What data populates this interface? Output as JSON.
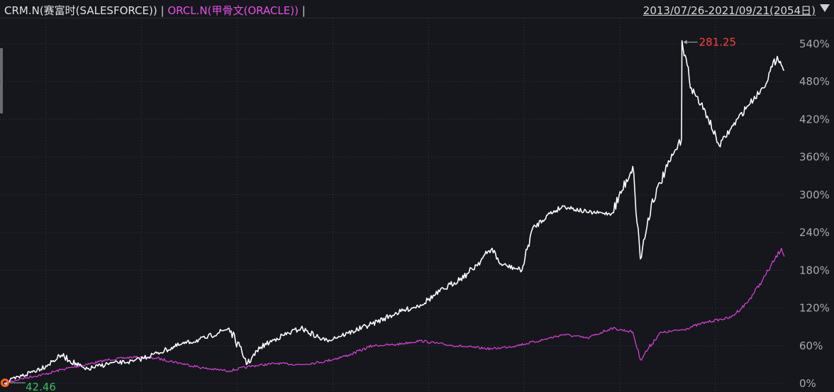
{
  "header": {
    "series_crm_label": "CRM.N(赛富时(SALESFORCE))",
    "separator": " | ",
    "series_orcl_label": "ORCL.N(甲骨文(ORACLE))",
    "separator_end": " |",
    "date_range": "2013/07/26-2021/09/21(2054日)"
  },
  "colors": {
    "background": "#16171c",
    "crm_line": "#ffffff",
    "orcl_line": "#e040e0",
    "grid": "#3a3b42",
    "axis_text": "#a8a8ae",
    "high_label": "#ff4040",
    "low_label": "#33c05a",
    "low_marker": "#ff6a1a"
  },
  "icons": {
    "range_dropdown": "triangle-down-icon",
    "low_marker": "circle-marker-icon"
  },
  "chart_data": {
    "type": "line",
    "x_range": [
      "2013/07/26",
      "2021/09/21"
    ],
    "trading_days": 2054,
    "y_unit": "%",
    "ylim": [
      0,
      560
    ],
    "y_ticks": [
      0,
      60,
      120,
      180,
      240,
      300,
      360,
      420,
      480,
      540
    ],
    "y_tick_labels": [
      "0%",
      "60%",
      "120%",
      "180%",
      "240%",
      "300%",
      "360%",
      "420%",
      "480%",
      "540%"
    ],
    "annotations": {
      "high_value": "281.25",
      "low_value": "42.46"
    },
    "series": [
      {
        "name": "CRM.N(赛富时(SALESFORCE))",
        "x": [
          "2013-07-26",
          "2013-10-01",
          "2014-01-01",
          "2014-03-01",
          "2014-06-01",
          "2014-09-01",
          "2014-12-01",
          "2015-03-01",
          "2015-06-01",
          "2015-09-01",
          "2015-12-01",
          "2016-02-10",
          "2016-04-01",
          "2016-06-01",
          "2016-09-01",
          "2016-12-01",
          "2017-03-01",
          "2017-06-01",
          "2017-09-01",
          "2017-12-01",
          "2018-03-01",
          "2018-06-01",
          "2018-09-01",
          "2018-10-01",
          "2018-12-24",
          "2019-02-01",
          "2019-04-01",
          "2019-06-01",
          "2019-09-01",
          "2019-12-01",
          "2020-02-20",
          "2020-03-20",
          "2020-05-01",
          "2020-07-01",
          "2020-08-24",
          "2020-08-26",
          "2020-10-01",
          "2020-12-01",
          "2021-01-15",
          "2021-03-01",
          "2021-05-01",
          "2021-07-01",
          "2021-08-25",
          "2021-09-21"
        ],
        "y": [
          0,
          12,
          28,
          45,
          22,
          32,
          35,
          48,
          62,
          72,
          88,
          32,
          58,
          72,
          88,
          68,
          80,
          95,
          112,
          125,
          150,
          175,
          215,
          190,
          180,
          245,
          268,
          282,
          272,
          270,
          345,
          198,
          285,
          345,
          388,
          545,
          470,
          425,
          378,
          405,
          440,
          470,
          520,
          498
        ]
      },
      {
        "name": "ORCL.N(甲骨文(ORACLE))",
        "x": [
          "2013-07-26",
          "2013-10-01",
          "2014-01-01",
          "2014-03-01",
          "2014-06-01",
          "2014-09-01",
          "2014-12-01",
          "2015-03-01",
          "2015-06-01",
          "2015-09-01",
          "2015-12-01",
          "2016-03-01",
          "2016-06-01",
          "2016-09-01",
          "2016-12-01",
          "2017-03-01",
          "2017-06-01",
          "2017-09-01",
          "2017-12-01",
          "2018-03-01",
          "2018-06-01",
          "2018-09-01",
          "2018-12-01",
          "2019-03-01",
          "2019-06-01",
          "2019-09-01",
          "2019-12-01",
          "2020-02-20",
          "2020-03-20",
          "2020-06-01",
          "2020-09-01",
          "2020-12-01",
          "2021-03-01",
          "2021-05-01",
          "2021-07-01",
          "2021-09-10",
          "2021-09-21"
        ],
        "y": [
          0,
          8,
          15,
          22,
          30,
          38,
          42,
          40,
          32,
          24,
          20,
          28,
          32,
          30,
          35,
          45,
          60,
          62,
          68,
          62,
          58,
          55,
          60,
          68,
          78,
          72,
          88,
          82,
          38,
          80,
          86,
          98,
          105,
          128,
          165,
          215,
          202
        ]
      }
    ]
  }
}
